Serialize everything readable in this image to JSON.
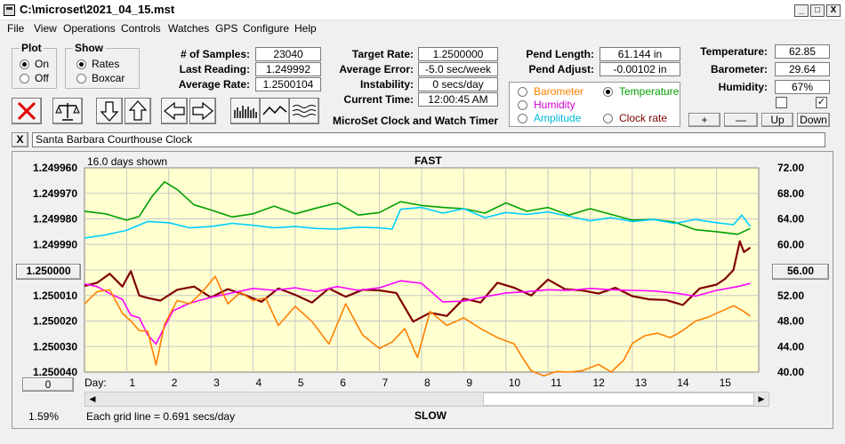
{
  "window": {
    "title": "C:\\microset\\2021_04_15.mst",
    "min": "_",
    "max": "□",
    "close": "X"
  },
  "menu": [
    "File",
    "View",
    "Operations",
    "Controls",
    "Watches",
    "GPS",
    "Configure",
    "Help"
  ],
  "plot_group": {
    "title": "Plot",
    "on": "On",
    "off": "Off",
    "selected": "On"
  },
  "show_group": {
    "title": "Show",
    "rates": "Rates",
    "boxcar": "Boxcar",
    "selected": "Rates"
  },
  "stats": [
    {
      "label": "# of Samples:",
      "value": "23040"
    },
    {
      "label": "Last Reading:",
      "value": "1.249992"
    },
    {
      "label": "Average Rate:",
      "value": "1.2500104"
    }
  ],
  "target": [
    {
      "label": "Target Rate:",
      "value": "1.2500000"
    },
    {
      "label": "Average Error:",
      "value": "-5.0 sec/week"
    },
    {
      "label": "Instability:",
      "value": "0 secs/day"
    },
    {
      "label": "Current Time:",
      "value": "12:00:45 AM"
    }
  ],
  "pend": [
    {
      "label": "Pend Length:",
      "value": "61.144 in"
    },
    {
      "label": "Pend Adjust:",
      "value": "-0.00102 in"
    }
  ],
  "env": [
    {
      "label": "Temperature:",
      "value": "62.85"
    },
    {
      "label": "Barometer:",
      "value": "29.64"
    },
    {
      "label": "Humidity:",
      "value": "67%"
    }
  ],
  "env_checks": [
    false,
    true
  ],
  "env_buttons": [
    "+",
    "—",
    "Up",
    "Down"
  ],
  "series_selector": {
    "items": [
      {
        "label": "Barometer",
        "color": "#ff8000",
        "selected": false
      },
      {
        "label": "Temperature",
        "color": "#00a000",
        "selected": true
      },
      {
        "label": "Humidity",
        "color": "#cc00cc",
        "selected": false
      },
      {
        "label": "Clock rate",
        "color": "#800000",
        "selected": false
      },
      {
        "label": "Amplitude",
        "color": "#00b8d8",
        "selected": false
      }
    ]
  },
  "app_caption": "MicroSet Clock and Watch Timer",
  "watch_name": "Santa Barbara Courthouse Clock",
  "clear_btn": "X",
  "left_mid_button": "1.250000",
  "right_mid_button": "56.00",
  "zero_button": "0",
  "percent": "1.59%",
  "chart_data": {
    "type": "line",
    "top_label": "FAST",
    "bottom_label": "SLOW",
    "days_shown": "16.0 days shown",
    "grid_note": "Each grid line = 0.691 secs/day",
    "xlabel": "Day:",
    "x_ticks": [
      "1",
      "2",
      "3",
      "4",
      "5",
      "6",
      "7",
      "8",
      "9",
      "10",
      "11",
      "12",
      "13",
      "14",
      "15"
    ],
    "xlim": [
      0,
      16
    ],
    "y_left_ticks": [
      "1.249960",
      "1.249970",
      "1.249980",
      "1.249990",
      "1.250000",
      "1.250010",
      "1.250020",
      "1.250030",
      "1.250040"
    ],
    "y_right_ticks": [
      "72.00",
      "68.00",
      "64.00",
      "60.00",
      "56.00",
      "52.00",
      "48.00",
      "44.00",
      "40.00"
    ],
    "y_right_lim": [
      40,
      72
    ],
    "y_left_lim": [
      1.24996,
      1.25004
    ],
    "series": [
      {
        "color": "#00a000",
        "axis": "right",
        "x": [
          0,
          0.5,
          1,
          1.3,
          1.6,
          1.9,
          2.2,
          2.6,
          3,
          3.5,
          4,
          4.5,
          5,
          5.5,
          6,
          6.5,
          7,
          7.5,
          8,
          8.5,
          9,
          9.5,
          10,
          10.5,
          11,
          11.5,
          12,
          12.5,
          13,
          13.5,
          14,
          14.5,
          15,
          15.5,
          15.8
        ],
        "y": [
          65.2,
          64.8,
          63.8,
          64.4,
          67.5,
          69.8,
          68.6,
          66.2,
          65.4,
          64.3,
          64.8,
          66.0,
          64.8,
          65.7,
          66.5,
          64.6,
          65.0,
          66.7,
          66.1,
          65.8,
          65.6,
          64.9,
          66.5,
          65.2,
          65.8,
          64.6,
          65.6,
          64.7,
          63.8,
          63.9,
          63.5,
          62.3,
          62.0,
          61.6,
          62.5
        ]
      },
      {
        "color": "#00ccff",
        "axis": "right",
        "x": [
          0,
          0.5,
          1,
          1.5,
          2,
          2.5,
          3,
          3.5,
          4,
          4.5,
          5,
          5.5,
          6,
          6.5,
          7,
          7.3,
          7.5,
          8,
          8.5,
          9,
          9.5,
          10,
          10.5,
          11,
          11.5,
          12,
          12.5,
          13,
          13.5,
          14,
          14.5,
          15,
          15.4,
          15.6,
          15.8
        ],
        "y": [
          61.0,
          61.5,
          62.2,
          63.6,
          63.4,
          62.6,
          62.8,
          63.3,
          63.0,
          62.6,
          62.8,
          62.5,
          62.4,
          62.7,
          62.6,
          62.4,
          65.5,
          65.8,
          64.9,
          65.6,
          64.2,
          65.0,
          64.7,
          65.1,
          64.4,
          63.7,
          64.2,
          63.6,
          63.9,
          63.3,
          63.9,
          63.4,
          63.1,
          64.6,
          62.8
        ]
      },
      {
        "color": "#800000",
        "axis": "right",
        "x": [
          0,
          0.3,
          0.6,
          0.9,
          1.1,
          1.3,
          1.5,
          1.8,
          2.2,
          2.6,
          3,
          3.4,
          3.8,
          4.2,
          4.6,
          5,
          5.4,
          5.8,
          6.2,
          6.6,
          7,
          7.4,
          7.8,
          8.2,
          8.6,
          9,
          9.4,
          9.8,
          10.2,
          10.6,
          11,
          11.4,
          11.8,
          12.2,
          12.6,
          13,
          13.4,
          13.8,
          14.2,
          14.6,
          15,
          15.2,
          15.4,
          15.55,
          15.65,
          15.8
        ],
        "y": [
          53.5,
          54.0,
          55.4,
          53.4,
          55.8,
          52.0,
          51.6,
          51.2,
          52.9,
          53.4,
          51.7,
          53.0,
          52.1,
          51.0,
          53.1,
          52.1,
          50.9,
          53.1,
          51.8,
          52.9,
          52.8,
          52.4,
          47.9,
          49.3,
          48.8,
          51.5,
          50.9,
          54.0,
          53.2,
          52.0,
          54.5,
          53.0,
          52.8,
          52.3,
          53.2,
          51.9,
          51.4,
          51.3,
          50.5,
          53.1,
          53.7,
          54.6,
          56.0,
          60.5,
          58.8,
          59.5
        ]
      },
      {
        "color": "#ff00ff",
        "axis": "right",
        "x": [
          0,
          0.3,
          0.6,
          0.9,
          1.1,
          1.3,
          1.5,
          1.7,
          1.9,
          2.1,
          2.5,
          3,
          3.5,
          4,
          4.5,
          5,
          5.5,
          6,
          6.5,
          7,
          7.5,
          8,
          8.5,
          9,
          9.5,
          10,
          10.5,
          11,
          11.5,
          12,
          12.5,
          13,
          13.5,
          14,
          14.5,
          15,
          15.5,
          15.8
        ],
        "y": [
          53.8,
          53.4,
          52.3,
          51.4,
          48.9,
          48.5,
          45.8,
          44.4,
          47.1,
          49.6,
          50.8,
          51.7,
          52.4,
          53.1,
          52.8,
          53.2,
          52.6,
          53.4,
          52.8,
          53.2,
          54.3,
          53.9,
          51.0,
          51.1,
          51.8,
          52.4,
          52.6,
          52.9,
          52.8,
          53.1,
          52.9,
          52.8,
          52.7,
          52.4,
          51.9,
          52.8,
          53.4,
          53.9
        ]
      },
      {
        "color": "#ff8000",
        "axis": "right",
        "x": [
          0,
          0.3,
          0.6,
          0.9,
          1.1,
          1.3,
          1.5,
          1.7,
          1.9,
          2.2,
          2.5,
          2.8,
          3.1,
          3.4,
          3.7,
          4,
          4.3,
          4.6,
          5,
          5.4,
          5.8,
          6.2,
          6.6,
          7,
          7.3,
          7.6,
          7.9,
          8.2,
          8.6,
          9,
          9.4,
          9.8,
          10.2,
          10.4,
          10.6,
          10.9,
          11.2,
          11.5,
          11.8,
          12.2,
          12.5,
          12.8,
          13,
          13.3,
          13.6,
          13.9,
          14.2,
          14.5,
          14.8,
          15.1,
          15.4,
          15.6,
          15.8
        ],
        "y": [
          50.7,
          52.6,
          52.9,
          49.2,
          48.0,
          46.5,
          46.4,
          41.1,
          47.5,
          51.2,
          50.7,
          52.6,
          55.0,
          50.7,
          52.5,
          51.2,
          51.6,
          47.3,
          50.3,
          47.9,
          44.4,
          50.7,
          45.8,
          43.7,
          44.7,
          46.8,
          42.3,
          49.5,
          47.3,
          48.5,
          46.8,
          45.4,
          44.4,
          42.2,
          40.2,
          39.4,
          40.1,
          40.0,
          40.2,
          41.2,
          40.0,
          41.9,
          44.5,
          45.7,
          46.1,
          45.4,
          46.5,
          48.0,
          48.6,
          49.5,
          50.4,
          49.7,
          48.8
        ]
      }
    ]
  }
}
